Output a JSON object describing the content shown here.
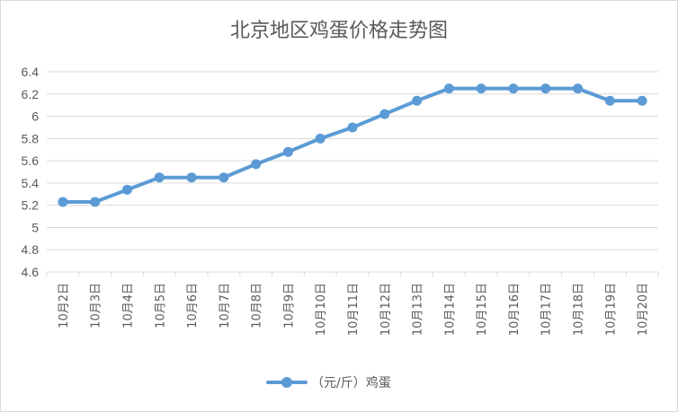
{
  "chart_data": {
    "type": "line",
    "title": "北京地区鸡蛋价格走势图",
    "categories": [
      "10月2日",
      "10月3日",
      "10月4日",
      "10月5日",
      "10月6日",
      "10月7日",
      "10月8日",
      "10月9日",
      "10月10日",
      "10月11日",
      "10月12日",
      "10月13日",
      "10月14日",
      "10月15日",
      "10月16日",
      "10月17日",
      "10月18日",
      "10月19日",
      "10月20日"
    ],
    "series": [
      {
        "name": "（元/斤）鸡蛋",
        "values": [
          5.23,
          5.23,
          5.34,
          5.45,
          5.45,
          5.45,
          5.57,
          5.68,
          5.8,
          5.9,
          6.02,
          6.14,
          6.25,
          6.25,
          6.25,
          6.25,
          6.25,
          6.14,
          6.14
        ]
      }
    ],
    "ylim": [
      4.6,
      6.4
    ],
    "yticks": [
      "4.6",
      "4.8",
      "5",
      "5.2",
      "5.4",
      "5.6",
      "5.8",
      "6",
      "6.2",
      "6.4"
    ],
    "xlabel": "",
    "ylabel": "",
    "grid": true,
    "legend_position": "bottom",
    "color": "#5b9bd5"
  }
}
